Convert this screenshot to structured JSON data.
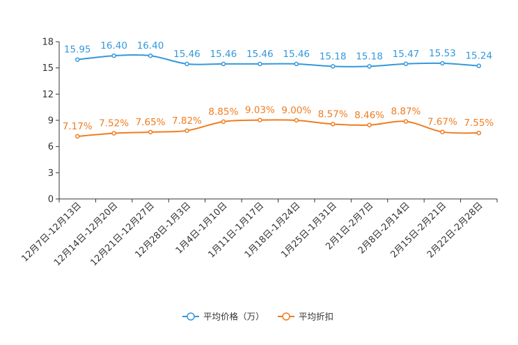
{
  "chart_data": {
    "type": "line",
    "title": "",
    "xlabel": "",
    "ylabel": "",
    "ylim": [
      0,
      18
    ],
    "yticks": [
      0,
      3,
      6,
      9,
      12,
      15,
      18
    ],
    "grid": false,
    "legend_position": "bottom",
    "categories": [
      "12月7日-12月13日",
      "12月14日-12月20日",
      "12月21日-12月27日",
      "12月28日-1月3日",
      "1月4日-1月10日",
      "1月11日-1月17日",
      "1月18日-1月24日",
      "1月25日-1月31日",
      "2月1日-2月7日",
      "2月8日-2月14日",
      "2月15日-2月21日",
      "2月22日-2月28日"
    ],
    "series": [
      {
        "name": "平均价格（万）",
        "color": "#3398db",
        "values": [
          15.95,
          16.4,
          16.4,
          15.46,
          15.46,
          15.46,
          15.46,
          15.18,
          15.18,
          15.47,
          15.53,
          15.24
        ],
        "labels": [
          "15.95",
          "16.40",
          "16.40",
          "15.46",
          "15.46",
          "15.46",
          "15.46",
          "15.18",
          "15.18",
          "15.47",
          "15.53",
          "15.24"
        ]
      },
      {
        "name": "平均折扣",
        "color": "#f07c1f",
        "values": [
          7.17,
          7.52,
          7.65,
          7.82,
          8.85,
          9.03,
          9.0,
          8.57,
          8.46,
          8.87,
          7.67,
          7.55
        ],
        "labels": [
          "7.17%",
          "7.52%",
          "7.65%",
          "7.82%",
          "8.85%",
          "9.03%",
          "9.00%",
          "8.57%",
          "8.46%",
          "8.87%",
          "7.67%",
          "7.55%"
        ]
      }
    ]
  }
}
